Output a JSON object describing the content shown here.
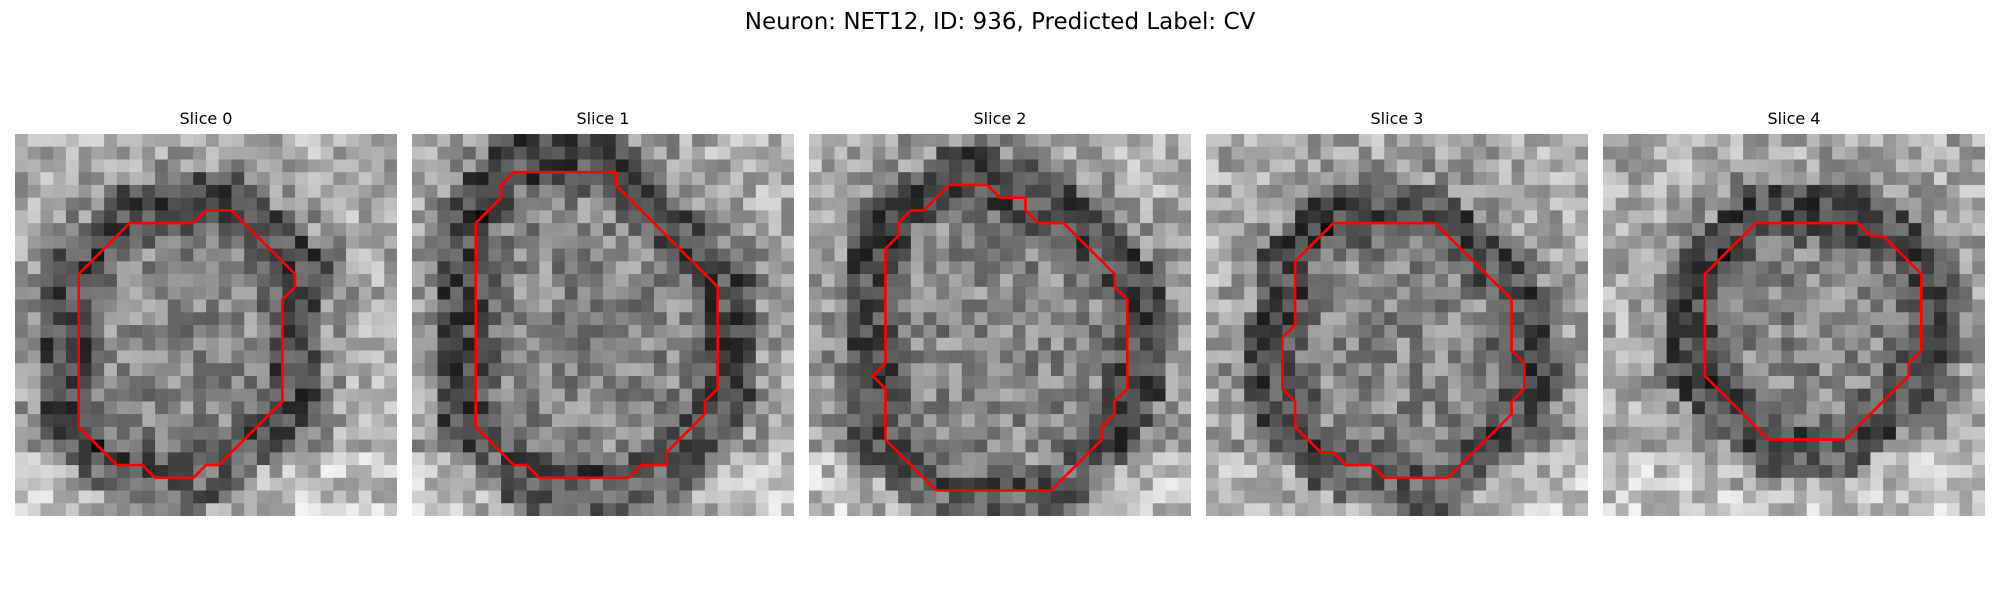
{
  "figure": {
    "title": "Neuron: NET12, ID: 936, Predicted Label: CV",
    "neuron": "NET12",
    "id": 936,
    "predicted_label": "CV",
    "colormap": "gray",
    "contour_color": "#ff0000"
  },
  "panels": [
    {
      "title": "Slice 0",
      "slice": 0
    },
    {
      "title": "Slice 1",
      "slice": 1
    },
    {
      "title": "Slice 2",
      "slice": 2
    },
    {
      "title": "Slice 3",
      "slice": 3
    },
    {
      "title": "Slice 4",
      "slice": 4
    }
  ]
}
